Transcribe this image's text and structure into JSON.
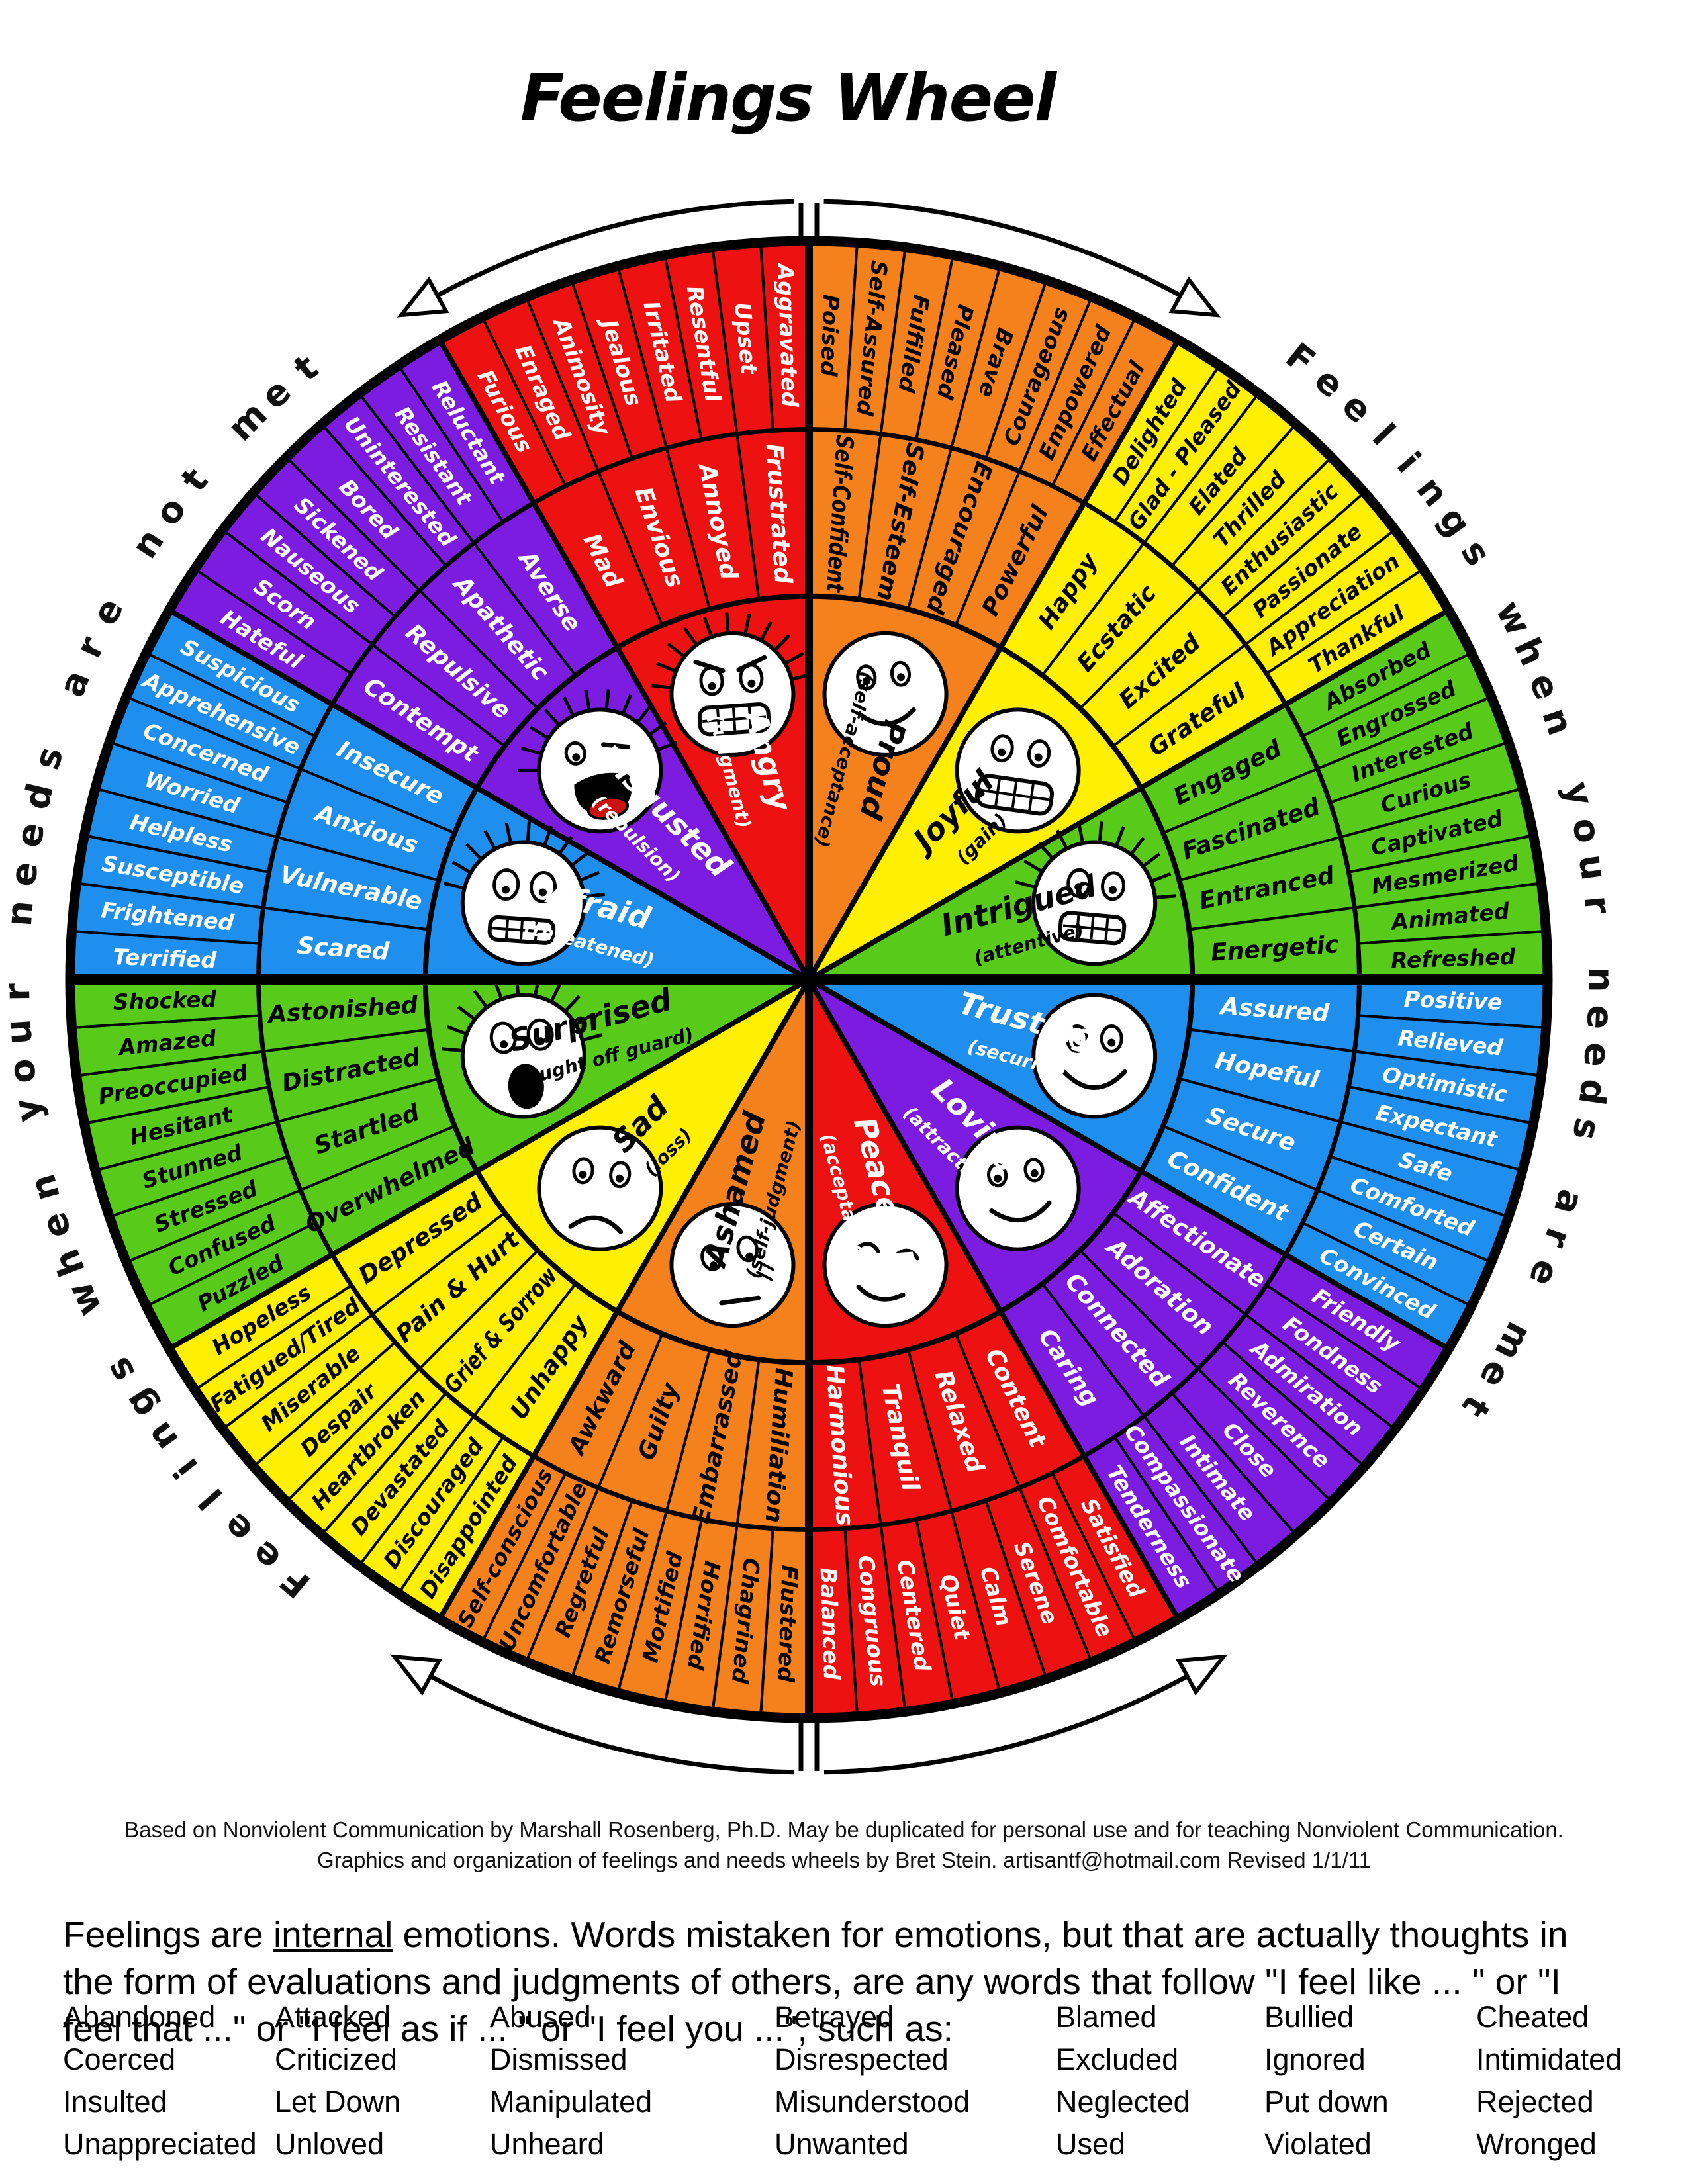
{
  "title": "Feelings Wheel",
  "arc_text_left": "Feelings when your needs are not met",
  "arc_text_right": "Feelings when your needs are met",
  "colors": {
    "background": "#ffffff",
    "line": "#000000",
    "red": "#ee1111",
    "orange": "#f5811d",
    "yellow": "#ffef00",
    "green": "#58cb1a",
    "blue": "#1e8fee",
    "purple": "#7b1ce0",
    "tongue": "#cc1111"
  },
  "wheel": {
    "sectors": [
      {
        "id": "proud",
        "name": "Proud",
        "qualifier": "(self-acceptance)",
        "fill": "#f5811d",
        "text_color": "#000000",
        "middle": [
          "Self-Confident",
          "Self-Esteem",
          "Encouraged",
          "Powerful"
        ],
        "outer": [
          "Poised",
          "Self-Assured",
          "Fulfilled",
          "Pleased",
          "Brave",
          "Courageous",
          "Empowered",
          "Effectual"
        ]
      },
      {
        "id": "joyful",
        "name": "Joyful",
        "qualifier": "(gain)",
        "fill": "#ffef00",
        "text_color": "#000000",
        "middle": [
          "Happy",
          "Ecstatic",
          "Excited",
          "Grateful"
        ],
        "outer": [
          "Delighted",
          "Glad - Pleased",
          "Elated",
          "Thrilled",
          "Enthusiastic",
          "Passionate",
          "Appreciation",
          "Thankful"
        ]
      },
      {
        "id": "intrigued",
        "name": "Intrigued",
        "qualifier": "(attentive)",
        "fill": "#58cb1a",
        "text_color": "#000000",
        "middle": [
          "Engaged",
          "Fascinated",
          "Entranced",
          "Energetic"
        ],
        "outer": [
          "Absorbed",
          "Engrossed",
          "Interested",
          "Curious",
          "Captivated",
          "Mesmerized",
          "Animated",
          "Refreshed"
        ]
      },
      {
        "id": "trusting",
        "name": "Trusting",
        "qualifier": "(security)",
        "fill": "#1e8fee",
        "text_color": "#ffffff",
        "middle": [
          "Assured",
          "Hopeful",
          "Secure",
          "Confident"
        ],
        "outer": [
          "Positive",
          "Relieved",
          "Optimistic",
          "Expectant",
          "Safe",
          "Comforted",
          "Certain",
          "Convinced"
        ]
      },
      {
        "id": "loving",
        "name": "Loving",
        "qualifier": "(attraction)",
        "fill": "#7b1ce0",
        "text_color": "#ffffff",
        "middle": [
          "Affectionate",
          "Adoration",
          "Connected",
          "Caring"
        ],
        "outer": [
          "Friendly",
          "Fondness",
          "Admiration",
          "Reverence",
          "Close",
          "Intimate",
          "Compassionate",
          "Tenderness"
        ]
      },
      {
        "id": "peaceful",
        "name": "Peaceful",
        "qualifier": "(acceptance)",
        "fill": "#ee1111",
        "text_color": "#ffffff",
        "middle": [
          "Content",
          "Relaxed",
          "Tranquil",
          "Harmonious"
        ],
        "outer": [
          "Satisfied",
          "Comfortable",
          "Serene",
          "Calm",
          "Quiet",
          "Centered",
          "Congruous",
          "Balanced"
        ]
      },
      {
        "id": "ashamed",
        "name": "Ashamed",
        "qualifier": "(self-judgment)",
        "fill": "#f5811d",
        "text_color": "#000000",
        "middle": [
          "Humiliation",
          "Embarrassed",
          "Guilty",
          "Awkward"
        ],
        "outer": [
          "Flustered",
          "Chagrined",
          "Horrified",
          "Mortified",
          "Remorseful",
          "Regretful",
          "Uncomfortable",
          "Self-conscious"
        ]
      },
      {
        "id": "sad",
        "name": "Sad",
        "qualifier": "(loss)",
        "fill": "#ffef00",
        "text_color": "#000000",
        "middle": [
          "Unhappy",
          "Grief & Sorrow",
          "Pain & Hurt",
          "Depressed"
        ],
        "outer": [
          "Disappointed",
          "Discouraged",
          "Devastated",
          "Heartbroken",
          "Despair",
          "Miserable",
          "Fatigued/Tired",
          "Hopeless"
        ]
      },
      {
        "id": "surprised",
        "name": "Surprised",
        "qualifier": "(caught off guard)",
        "fill": "#58cb1a",
        "text_color": "#000000",
        "middle": [
          "Overwhelmed",
          "Startled",
          "Distracted",
          "Astonished"
        ],
        "outer": [
          "Puzzled",
          "Confused",
          "Stressed",
          "Stunned",
          "Hesitant",
          "Preoccupied",
          "Amazed",
          "Shocked"
        ]
      },
      {
        "id": "afraid",
        "name": "Afraid",
        "qualifier": "(threatened)",
        "fill": "#1e8fee",
        "text_color": "#ffffff",
        "middle": [
          "Scared",
          "Vulnerable",
          "Anxious",
          "Insecure"
        ],
        "outer": [
          "Terrified",
          "Frightened",
          "Susceptible",
          "Helpless",
          "Worried",
          "Concerned",
          "Apprehensive",
          "Suspicious"
        ]
      },
      {
        "id": "disgusted",
        "name": "Disgusted",
        "qualifier": "(repulsion)",
        "fill": "#7b1ce0",
        "text_color": "#ffffff",
        "middle": [
          "Contempt",
          "Repulsive",
          "Apathetic",
          "Averse"
        ],
        "outer": [
          "Hateful",
          "Scorn",
          "Nauseous",
          "Sickened",
          "Bored",
          "Uninterested",
          "Resistant",
          "Reluctant"
        ]
      },
      {
        "id": "angry",
        "name": "Angry",
        "qualifier": "(judgment)",
        "fill": "#ee1111",
        "text_color": "#ffffff",
        "middle": [
          "Mad",
          "Envious",
          "Annoyed",
          "Frustrated"
        ],
        "outer": [
          "Furious",
          "Enraged",
          "Animosity",
          "Jealous",
          "Irritated",
          "Resentful",
          "Upset",
          "Aggravated"
        ]
      }
    ]
  },
  "attribution": {
    "line1": "Based on Nonviolent Communication by Marshall Rosenberg, Ph.D.  May be duplicated for personal use and for teaching Nonviolent Communication.",
    "line2": "Graphics and organization of feelings and needs wheels by Bret Stein.  artisantf@hotmail.com   Revised 1/1/11"
  },
  "footer": {
    "para_before_underline": "Feelings are ",
    "para_underlined": "internal",
    "para_after_underline": " emotions.  Words mistaken for emotions, but that are actually thoughts in the form of evaluations and judgments of others, are any words that follow \"I feel like ... \" or \"I feel that ...\" or \"I feel as if ... \" or \"I feel you ...\", such as:",
    "words": [
      [
        "Abandoned",
        "Attacked",
        "Abused",
        "Betrayed",
        "Blamed",
        "Bullied",
        "Cheated"
      ],
      [
        "Coerced",
        "Criticized",
        "Dismissed",
        "Disrespected",
        "Excluded",
        "Ignored",
        "Intimidated"
      ],
      [
        "Insulted",
        "Let Down",
        "Manipulated",
        "Misunderstood",
        "Neglected",
        "Put down",
        "Rejected"
      ],
      [
        "Unappreciated",
        "Unloved",
        "Unheard",
        "Unwanted",
        "Used",
        "Violated",
        "Wronged"
      ]
    ]
  }
}
